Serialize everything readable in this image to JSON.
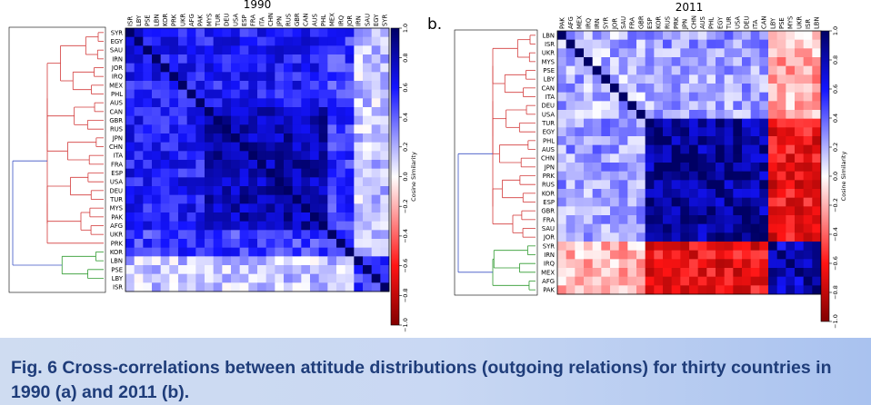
{
  "caption": "Fig. 6 Cross-correlations between attitude distributions (outgoing relations) for thirty countries in 1990 (a) and 2011 (b).",
  "chart_data": [
    {
      "type": "heatmap",
      "panel_label": "",
      "title": "1990",
      "colorbar_label": "Cosine Similarity",
      "colorbar_ticks": [
        "1.0",
        "0.8",
        "0.6",
        "0.4",
        "0.2",
        "0.0",
        "−0.2",
        "−0.4",
        "−0.6",
        "−0.8",
        "−1.0"
      ],
      "vmin": -1.0,
      "vmax": 1.0,
      "row_labels": [
        "SYR",
        "EGY",
        "SAU",
        "IRN",
        "JOR",
        "IRQ",
        "MEX",
        "PHL",
        "AUS",
        "CAN",
        "GBR",
        "RUS",
        "JPN",
        "CHN",
        "ITA",
        "FRA",
        "ESP",
        "USA",
        "DEU",
        "TUR",
        "MYS",
        "PAK",
        "AFG",
        "UKR",
        "PRK",
        "KOR",
        "LBN",
        "PSE",
        "LBY",
        "ISR"
      ],
      "col_labels": [
        "ISR",
        "LBY",
        "PSE",
        "LBN",
        "KOR",
        "PRK",
        "UKR",
        "AFG",
        "PAK",
        "MYS",
        "TUR",
        "DEU",
        "USA",
        "ESP",
        "FRA",
        "ITA",
        "CHN",
        "JPN",
        "RUS",
        "GBR",
        "CAN",
        "AUS",
        "PHL",
        "MEX",
        "IRQ",
        "JOR",
        "IRN",
        "SAU",
        "EGY",
        "SYR"
      ],
      "dendrogram": {
        "clusters": [
          {
            "color": "#d33b3b",
            "size": 25
          },
          {
            "color": "#2e9a2e",
            "size": 4
          }
        ],
        "root_color": "#3b52c4"
      }
    },
    {
      "type": "heatmap",
      "panel_label": "b.",
      "title": "2011",
      "colorbar_label": "Cosine Similarity",
      "colorbar_ticks": [
        "1.0",
        "0.8",
        "0.6",
        "0.4",
        "0.2",
        "0.0",
        "−0.2",
        "−0.4",
        "−0.6",
        "−0.8",
        "−1.0"
      ],
      "vmin": -1.0,
      "vmax": 1.0,
      "row_labels": [
        "LBN",
        "ISR",
        "UKR",
        "MYS",
        "PSE",
        "LBY",
        "CAN",
        "ITA",
        "DEU",
        "USA",
        "TUR",
        "EGY",
        "PHL",
        "AUS",
        "CHN",
        "JPN",
        "PRK",
        "RUS",
        "KOR",
        "ESP",
        "GBR",
        "FRA",
        "SAU",
        "JOR",
        "SYR",
        "IRN",
        "IRQ",
        "MEX",
        "AFG",
        "PAK"
      ],
      "col_labels": [
        "PAK",
        "AFG",
        "MEX",
        "IRQ",
        "IRN",
        "SYR",
        "JOR",
        "SAU",
        "FRA",
        "GBR",
        "ESP",
        "KOR",
        "RUS",
        "PRK",
        "JPN",
        "CHN",
        "AUS",
        "PHL",
        "EGY",
        "TUR",
        "USA",
        "DEU",
        "ITA",
        "CAN",
        "LBY",
        "PSE",
        "MYS",
        "UKR",
        "ISR",
        "LBN"
      ],
      "dendrogram": {
        "clusters": [
          {
            "color": "#d33b3b",
            "size": 24
          },
          {
            "color": "#2e9a2e",
            "size": 6
          }
        ],
        "root_color": "#3b52c4"
      }
    }
  ]
}
